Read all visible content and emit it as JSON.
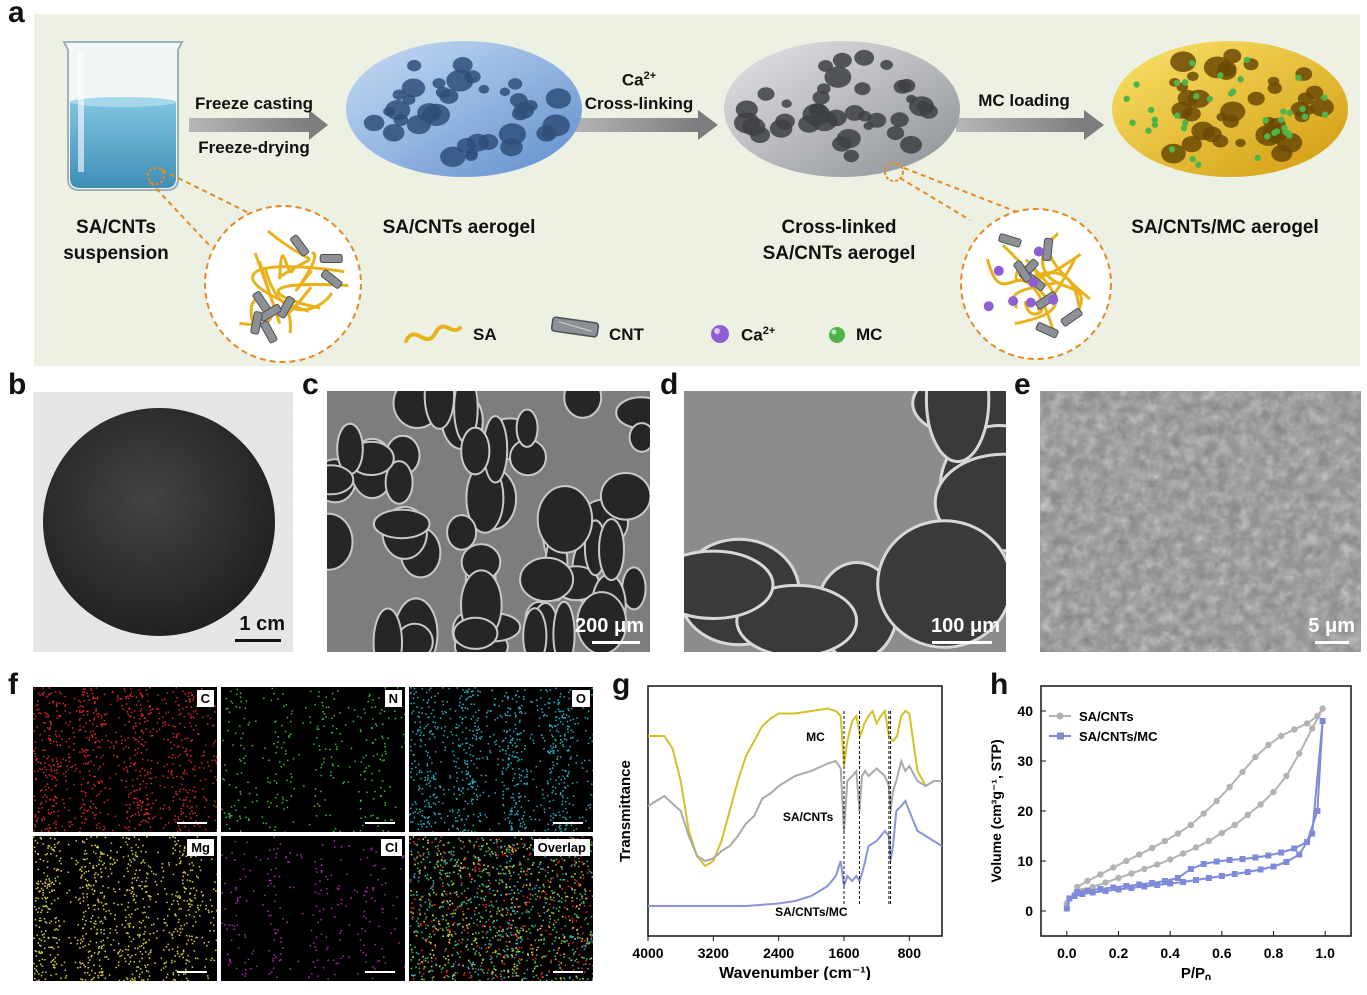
{
  "panel_letters": [
    "a",
    "b",
    "c",
    "d",
    "e",
    "f",
    "g",
    "h"
  ],
  "panel_a": {
    "captions": {
      "suspension": "SA/CNTs\nsuspension",
      "aerogel": "SA/CNTs aerogel",
      "crosslinked": "Cross-linked\nSA/CNTs aerogel",
      "mc_aerogel": "SA/CNTs/MC aerogel"
    },
    "arrows": {
      "step1_top": "Freeze casting",
      "step1_bottom": "Freeze-drying",
      "step2_ion": "Ca",
      "step2_ion_sup": "2+",
      "step2_label": "Cross-linking",
      "step3_label": "MC loading"
    },
    "legend": {
      "sa": "SA",
      "cnt": "CNT",
      "ca": "Ca",
      "ca_sup": "2+",
      "mc": "MC"
    },
    "colors": {
      "background": "#ecf1e4",
      "sa_fiber": "#e8b21c",
      "ca_ion": "#8e5ed4",
      "mc_particle": "#4fb548",
      "aerogel_blue": "#8fb8e6",
      "aerogel_gray": "#b9bcc0",
      "aerogel_yellow": "#ecc31b",
      "liquid": "#4aa3c9"
    }
  },
  "panel_b": {
    "scale_label": "1 cm"
  },
  "panel_c": {
    "scale_label": "200 μm"
  },
  "panel_d": {
    "scale_label": "100 μm"
  },
  "panel_e": {
    "scale_label": "5 μm"
  },
  "panel_f": {
    "tiles": [
      {
        "label": "C",
        "color": "#e0262b"
      },
      {
        "label": "N",
        "color": "#3fbf3c"
      },
      {
        "label": "O",
        "color": "#22b3c2"
      },
      {
        "label": "Mg",
        "color": "#e0d13a"
      },
      {
        "label": "Cl",
        "color": "#b02ab8"
      },
      {
        "label": "Overlap",
        "color": "#9a9a3a"
      }
    ]
  },
  "chart_data": [
    {
      "type": "line",
      "panel": "g",
      "title": "",
      "xlabel": "Wavenumber (cm⁻¹)",
      "ylabel": "Transmittance",
      "xlim": [
        4000,
        400
      ],
      "xticks": [
        "4000",
        "3200",
        "2400",
        "1600",
        "800"
      ],
      "xtick_values": [
        4000,
        3200,
        2400,
        1600,
        800
      ],
      "y_tick_labels": false,
      "series": [
        {
          "name": "MC",
          "color": "#cfc325",
          "x": [
            4000,
            3800,
            3700,
            3600,
            3500,
            3400,
            3300,
            3200,
            3100,
            3000,
            2900,
            2800,
            2700,
            2600,
            2500,
            2400,
            2200,
            2000,
            1800,
            1700,
            1640,
            1600,
            1560,
            1500,
            1450,
            1400,
            1350,
            1300,
            1250,
            1200,
            1150,
            1100,
            1050,
            1000,
            950,
            900,
            850,
            800,
            700,
            600,
            500,
            400
          ],
          "y": [
            0.8,
            0.8,
            0.75,
            0.62,
            0.42,
            0.32,
            0.28,
            0.3,
            0.38,
            0.5,
            0.62,
            0.72,
            0.78,
            0.84,
            0.87,
            0.89,
            0.89,
            0.9,
            0.91,
            0.9,
            0.88,
            0.68,
            0.78,
            0.86,
            0.88,
            0.8,
            0.85,
            0.88,
            0.9,
            0.85,
            0.88,
            0.9,
            0.8,
            0.78,
            0.8,
            0.88,
            0.9,
            0.89,
            0.66,
            0.6,
            0.62,
            0.62
          ]
        },
        {
          "name": "SA/CNTs",
          "color": "#a9a9a9",
          "x": [
            4000,
            3800,
            3600,
            3500,
            3400,
            3300,
            3200,
            3100,
            3000,
            2900,
            2800,
            2700,
            2600,
            2500,
            2400,
            2300,
            2200,
            2000,
            1800,
            1700,
            1640,
            1600,
            1560,
            1500,
            1450,
            1410,
            1380,
            1340,
            1300,
            1200,
            1100,
            1050,
            1030,
            1000,
            960,
            900,
            850,
            800,
            700,
            600,
            500,
            400
          ],
          "y": [
            0.52,
            0.56,
            0.5,
            0.4,
            0.32,
            0.3,
            0.31,
            0.34,
            0.36,
            0.4,
            0.45,
            0.48,
            0.55,
            0.57,
            0.6,
            0.62,
            0.64,
            0.66,
            0.69,
            0.7,
            0.67,
            0.42,
            0.62,
            0.64,
            0.66,
            0.5,
            0.64,
            0.66,
            0.64,
            0.67,
            0.64,
            0.6,
            0.5,
            0.58,
            0.62,
            0.7,
            0.66,
            0.68,
            0.62,
            0.6,
            0.62,
            0.62
          ]
        },
        {
          "name": "SA/CNTs/MC",
          "color": "#8a94d6",
          "x": [
            4000,
            3600,
            3200,
            2800,
            2400,
            2200,
            2000,
            1800,
            1700,
            1640,
            1600,
            1560,
            1500,
            1450,
            1410,
            1380,
            1340,
            1300,
            1200,
            1100,
            1050,
            1030,
            1000,
            960,
            900,
            850,
            800,
            700,
            600,
            500,
            400
          ],
          "y": [
            0.12,
            0.12,
            0.12,
            0.12,
            0.13,
            0.14,
            0.16,
            0.2,
            0.24,
            0.3,
            0.2,
            0.24,
            0.22,
            0.24,
            0.22,
            0.25,
            0.3,
            0.36,
            0.38,
            0.42,
            0.4,
            0.3,
            0.36,
            0.5,
            0.52,
            0.54,
            0.5,
            0.42,
            0.4,
            0.38,
            0.36
          ]
        }
      ],
      "annotation_lines_x": [
        1600,
        1410,
        1050,
        1030
      ]
    },
    {
      "type": "line",
      "panel": "h",
      "title": "",
      "xlabel": "P/P",
      "xlabel_sub": "0",
      "ylabel": "Volume (cm³g⁻¹, STP)",
      "xlim": [
        -0.1,
        1.1
      ],
      "ylim": [
        -5,
        45
      ],
      "xticks": [
        "0.0",
        "0.2",
        "0.4",
        "0.6",
        "0.8",
        "1.0"
      ],
      "xtick_values": [
        0.0,
        0.2,
        0.4,
        0.6,
        0.8,
        1.0
      ],
      "yticks": [
        "0",
        "10",
        "20",
        "30",
        "40"
      ],
      "ytick_values": [
        0,
        10,
        20,
        30,
        40
      ],
      "legend_position": "top-left",
      "series": [
        {
          "name": "SA/CNTs",
          "color": "#b3b3b3",
          "marker": "circle",
          "x": [
            0.0,
            0.01,
            0.03,
            0.06,
            0.1,
            0.15,
            0.2,
            0.25,
            0.3,
            0.35,
            0.4,
            0.45,
            0.5,
            0.55,
            0.6,
            0.65,
            0.7,
            0.75,
            0.8,
            0.85,
            0.9,
            0.95,
            0.99,
            0.97,
            0.93,
            0.88,
            0.83,
            0.78,
            0.73,
            0.68,
            0.63,
            0.58,
            0.53,
            0.48,
            0.43,
            0.38,
            0.33,
            0.28,
            0.23,
            0.18,
            0.13,
            0.08,
            0.04
          ],
          "y": [
            1.5,
            2.5,
            3.3,
            4.0,
            4.8,
            5.7,
            6.6,
            7.5,
            8.4,
            9.3,
            10.3,
            11.5,
            12.7,
            14.0,
            15.6,
            17.2,
            19.2,
            21.3,
            23.8,
            27.0,
            31.5,
            36.5,
            40.5,
            39.0,
            37.5,
            36.3,
            35.0,
            33.2,
            30.8,
            27.8,
            24.8,
            22.0,
            19.5,
            17.2,
            15.5,
            14.0,
            12.6,
            11.3,
            10.0,
            8.7,
            7.3,
            6.0,
            4.8
          ]
        },
        {
          "name": "SA/CNTs/MC",
          "color": "#7f8ad8",
          "marker": "square",
          "x": [
            0.0,
            0.01,
            0.03,
            0.06,
            0.1,
            0.15,
            0.2,
            0.25,
            0.3,
            0.35,
            0.4,
            0.45,
            0.5,
            0.55,
            0.6,
            0.65,
            0.7,
            0.75,
            0.8,
            0.85,
            0.9,
            0.95,
            0.99,
            0.97,
            0.93,
            0.88,
            0.83,
            0.78,
            0.73,
            0.68,
            0.63,
            0.58,
            0.53,
            0.48,
            0.43,
            0.38,
            0.33,
            0.28,
            0.23,
            0.18,
            0.13,
            0.08,
            0.04
          ],
          "y": [
            0.5,
            2.5,
            3.0,
            3.4,
            3.7,
            4.0,
            4.3,
            4.6,
            4.9,
            5.2,
            5.5,
            5.8,
            6.2,
            6.6,
            7.0,
            7.4,
            7.8,
            8.3,
            8.9,
            9.8,
            11.3,
            15.5,
            38.0,
            20.0,
            13.8,
            12.5,
            11.7,
            11.1,
            10.7,
            10.4,
            10.2,
            9.9,
            9.4,
            8.4,
            6.6,
            6.0,
            5.6,
            5.3,
            5.0,
            4.7,
            4.4,
            4.1,
            3.8
          ]
        }
      ]
    }
  ]
}
